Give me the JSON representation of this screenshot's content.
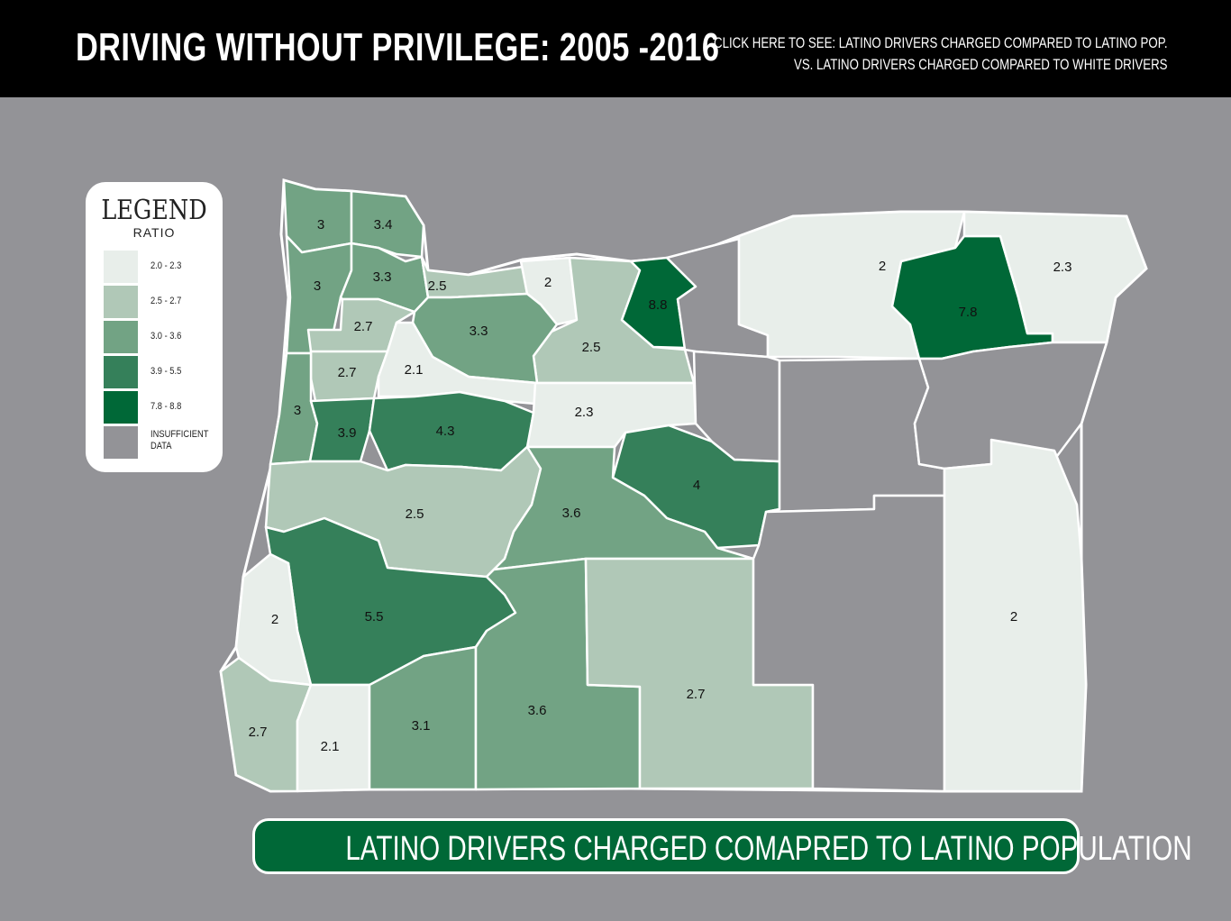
{
  "header": {
    "title": "DRIVING WITHOUT PRIVILEGE: 2005 -2016",
    "toggle_line1": "CLICK HERE TO SEE: LATINO DRIVERS CHARGED COMPARED TO LATINO POP.",
    "toggle_line2": "VS. LATINO DRIVERS CHARGED COMPARED TO WHITE DRIVERS"
  },
  "legend": {
    "title": "LEGEND",
    "subtitle": "RATIO",
    "items": [
      {
        "label": "2.0 - 2.3",
        "color": "#e8eeea"
      },
      {
        "label": "2.5 - 2.7",
        "color": "#b0c8b7"
      },
      {
        "label": "3.0 - 3.6",
        "color": "#72a384"
      },
      {
        "label": "3.9 - 5.5",
        "color": "#35805a"
      },
      {
        "label": "7.8 - 8.8",
        "color": "#006837"
      },
      {
        "label": "INSUFFICIENT DATA",
        "color": "#939397"
      }
    ]
  },
  "map": {
    "state_background": "#939397",
    "counties": [
      {
        "id": "clatsop",
        "value": "3",
        "color": "#72a384"
      },
      {
        "id": "columbia",
        "value": "3.4",
        "color": "#72a384"
      },
      {
        "id": "tillamook",
        "value": "3",
        "color": "#72a384"
      },
      {
        "id": "washington",
        "value": "3.3",
        "color": "#72a384"
      },
      {
        "id": "multnomah",
        "value": "2.5",
        "color": "#b0c8b7"
      },
      {
        "id": "yamhill",
        "value": "2.7",
        "color": "#b0c8b7"
      },
      {
        "id": "hood-river",
        "value": "2",
        "color": "#e8eeea"
      },
      {
        "id": "wasco",
        "value": "2.5",
        "color": "#b0c8b7"
      },
      {
        "id": "sherman",
        "value": "8.8",
        "color": "#006837"
      },
      {
        "id": "clackamas",
        "value": "3.3",
        "color": "#72a384"
      },
      {
        "id": "polk",
        "value": "2.7",
        "color": "#b0c8b7"
      },
      {
        "id": "marion",
        "value": "2.1",
        "color": "#e8eeea"
      },
      {
        "id": "lincoln",
        "value": "3",
        "color": "#72a384"
      },
      {
        "id": "benton",
        "value": "3.9",
        "color": "#35805a"
      },
      {
        "id": "linn",
        "value": "4.3",
        "color": "#35805a"
      },
      {
        "id": "jefferson",
        "value": "2.3",
        "color": "#e8eeea"
      },
      {
        "id": "crook",
        "value": "4",
        "color": "#35805a"
      },
      {
        "id": "lane",
        "value": "2.5",
        "color": "#b0c8b7"
      },
      {
        "id": "deschutes",
        "value": "3.6",
        "color": "#72a384"
      },
      {
        "id": "douglas",
        "value": "5.5",
        "color": "#35805a"
      },
      {
        "id": "coos",
        "value": "2",
        "color": "#e8eeea"
      },
      {
        "id": "curry",
        "value": "2.7",
        "color": "#b0c8b7"
      },
      {
        "id": "josephine",
        "value": "2.1",
        "color": "#e8eeea"
      },
      {
        "id": "jackson",
        "value": "3.1",
        "color": "#72a384"
      },
      {
        "id": "klamath",
        "value": "3.6",
        "color": "#72a384"
      },
      {
        "id": "lake",
        "value": "2.7",
        "color": "#b0c8b7"
      },
      {
        "id": "umatilla",
        "value": "2",
        "color": "#e8eeea"
      },
      {
        "id": "morrow-east",
        "value": "7.8",
        "color": "#006837"
      },
      {
        "id": "wallowa",
        "value": "2.3",
        "color": "#e8eeea"
      },
      {
        "id": "malheur",
        "value": "2",
        "color": "#e8eeea"
      },
      {
        "id": "gilliam",
        "value": "",
        "color": "#939397"
      },
      {
        "id": "wheeler",
        "value": "",
        "color": "#939397"
      },
      {
        "id": "grant",
        "value": "",
        "color": "#939397"
      },
      {
        "id": "union",
        "value": "",
        "color": "#939397"
      },
      {
        "id": "baker",
        "value": "",
        "color": "#939397"
      },
      {
        "id": "harney",
        "value": "",
        "color": "#939397"
      }
    ]
  },
  "footer": {
    "banner": "LATINO DRIVERS CHARGED COMAPRED TO LATINO POPULATION"
  }
}
